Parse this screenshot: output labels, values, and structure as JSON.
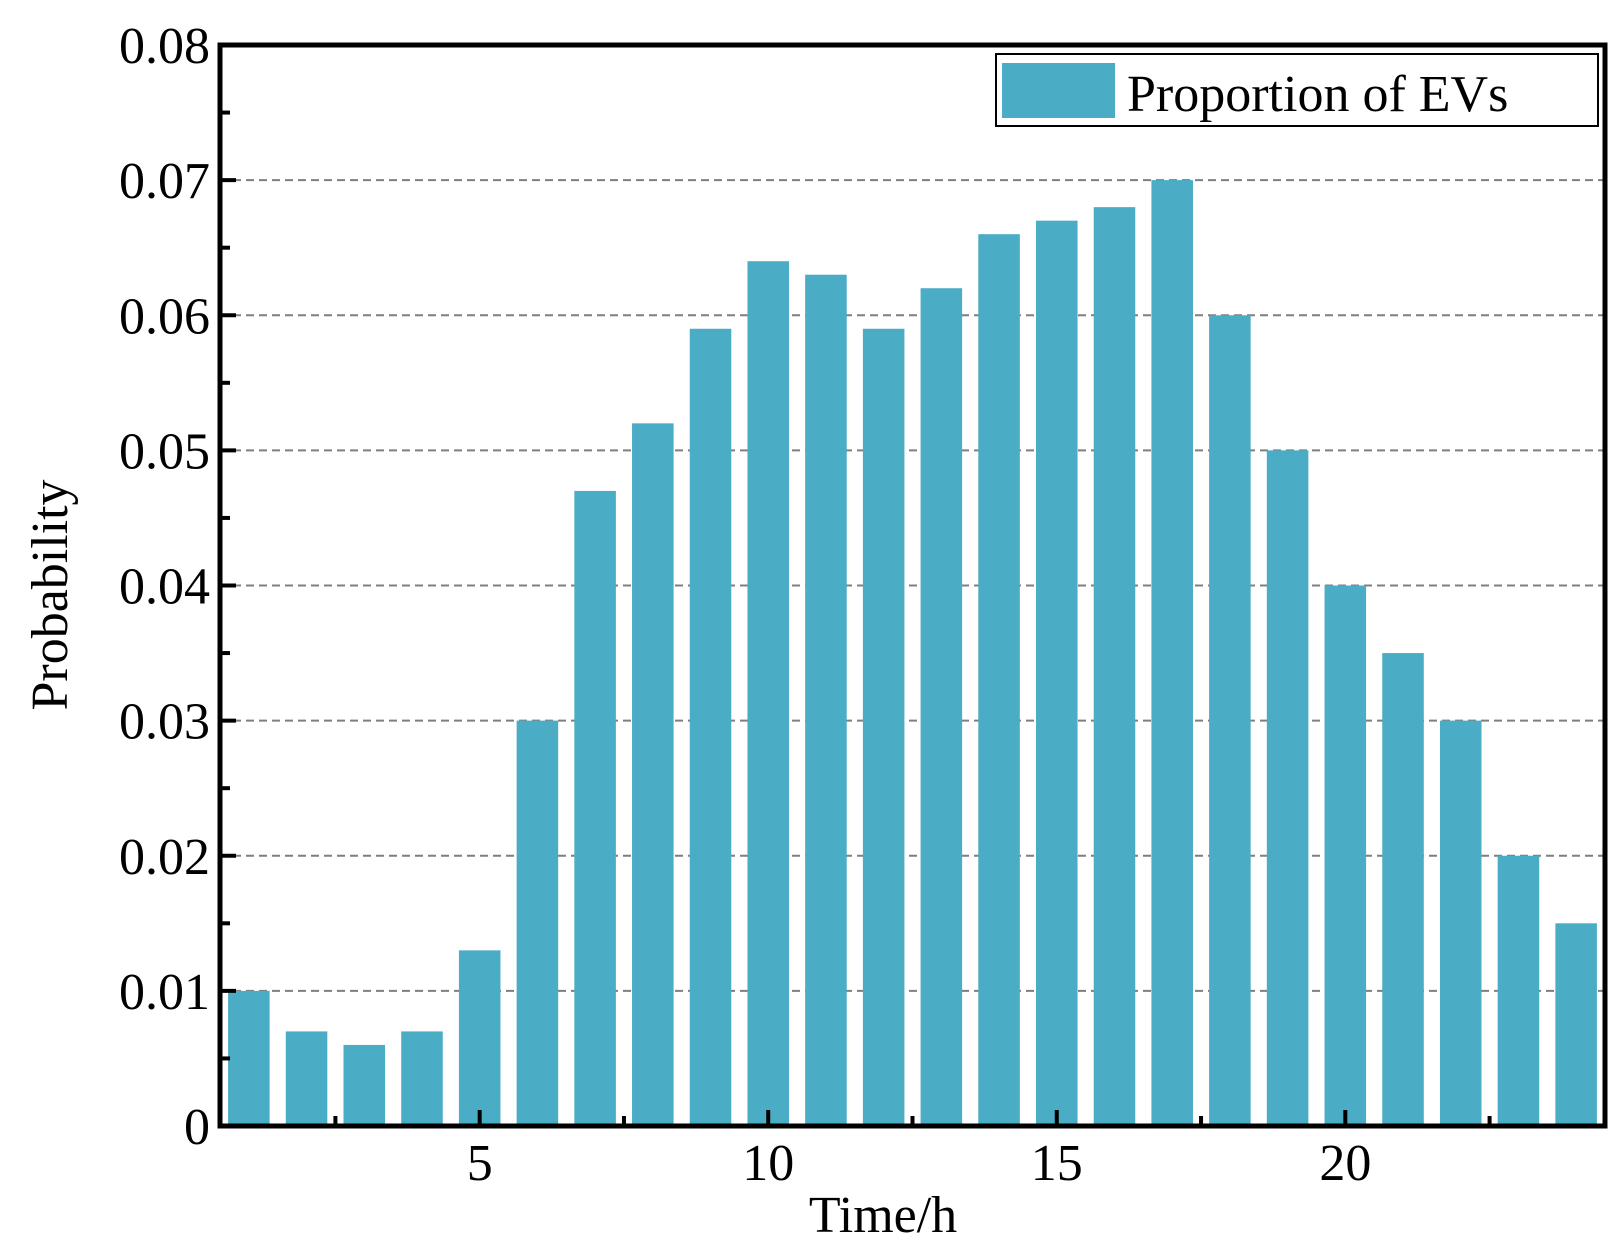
{
  "chart_data": {
    "type": "bar",
    "title": "",
    "xlabel": "Time/h",
    "ylabel": "Probability",
    "x": [
      1,
      2,
      3,
      4,
      5,
      6,
      7,
      8,
      9,
      10,
      11,
      12,
      13,
      14,
      15,
      16,
      17,
      18,
      19,
      20,
      21,
      22,
      23,
      24
    ],
    "series": [
      {
        "name": "Proportion of EVs",
        "color": "#4BACC6",
        "values": [
          0.01,
          0.007,
          0.006,
          0.007,
          0.013,
          0.03,
          0.047,
          0.052,
          0.059,
          0.064,
          0.063,
          0.059,
          0.062,
          0.066,
          0.067,
          0.068,
          0.07,
          0.06,
          0.05,
          0.04,
          0.035,
          0.03,
          0.02,
          0.015
        ]
      }
    ],
    "ylim": [
      0,
      0.08
    ],
    "xlim": [
      0.5,
      24.5
    ],
    "yticks": [
      "0",
      "0.01",
      "0.02",
      "0.03",
      "0.04",
      "0.05",
      "0.06",
      "0.07",
      "0.08"
    ],
    "xticks": [
      "5",
      "10",
      "15",
      "20"
    ],
    "grid": "horizontal dashed",
    "legend_position": "top-right"
  }
}
